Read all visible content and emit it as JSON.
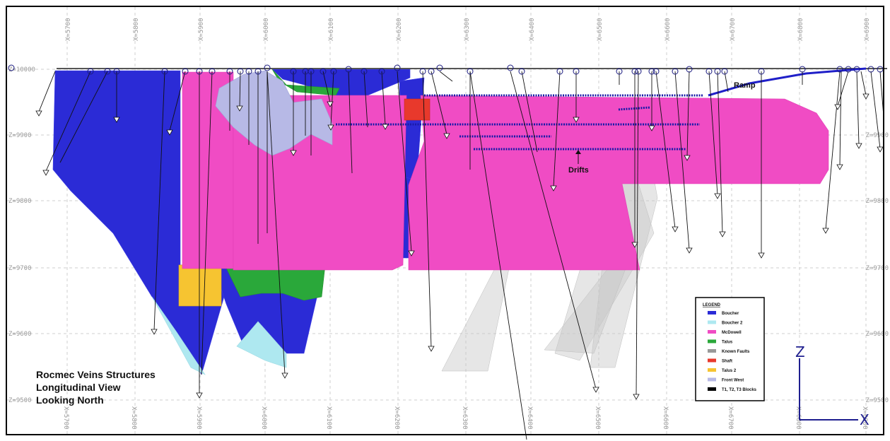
{
  "grid": {
    "x_labels": [
      "X=5700",
      "X=5800",
      "X=5900",
      "X=6000",
      "X=6100",
      "X=6200",
      "X=6300",
      "X=6400",
      "X=6500",
      "X=6600",
      "X=6700",
      "X=6800",
      "X=6900"
    ],
    "z_labels": [
      "Z=10000",
      "Z=9900",
      "Z=9800",
      "Z=9700",
      "Z=9600",
      "Z=9500"
    ]
  },
  "title_lines": [
    "Rocmec Veins Structures",
    "Longitudinal View",
    "Looking North"
  ],
  "annotations": {
    "ramp": "Ramp",
    "drifts": "Drifts"
  },
  "legend": {
    "title": "LEGEND",
    "items": [
      {
        "label": "Boucher",
        "color": "#2b2bd6"
      },
      {
        "label": "Boucher 2",
        "color": "#aee8f0"
      },
      {
        "label": "McDowell",
        "color": "#f04cc4"
      },
      {
        "label": "Talus",
        "color": "#2aa83a"
      },
      {
        "label": "Known Faults",
        "color": "#999999"
      },
      {
        "label": "Shaft",
        "color": "#e8392c"
      },
      {
        "label": "Talus 2",
        "color": "#f6c431"
      },
      {
        "label": "Front West",
        "color": "#b7b9e6"
      },
      {
        "label": "T1, T2, T3 Blocks",
        "color": "#000000"
      }
    ]
  },
  "axis_tripod": {
    "vertical": "Z",
    "horizontal": "X"
  }
}
